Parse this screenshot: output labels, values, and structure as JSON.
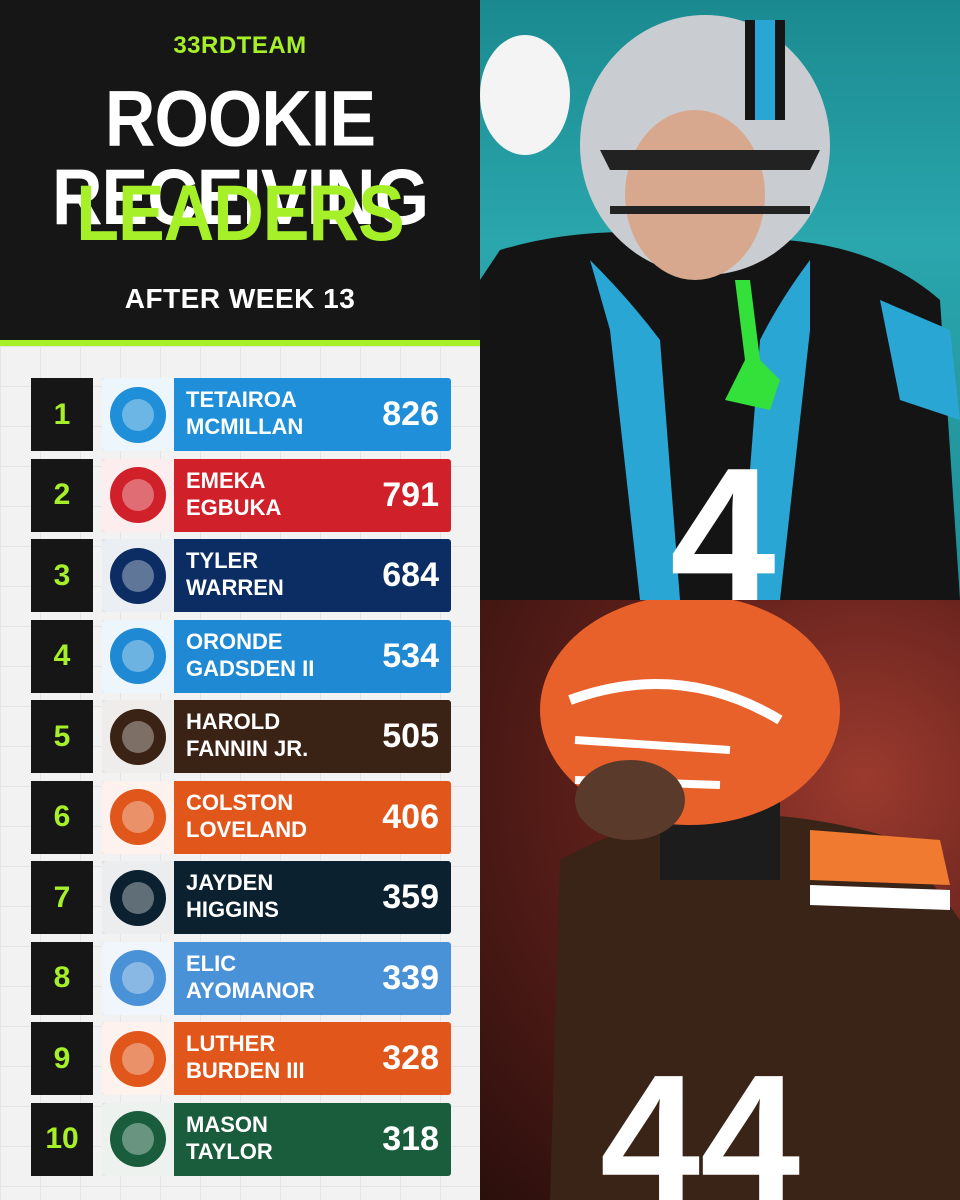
{
  "header": {
    "brand": "33RDTEAM",
    "title_line1": "ROOKIE RECEIVING",
    "title_line2": "LEADERS",
    "subtitle": "AFTER WEEK 13"
  },
  "colors": {
    "accent_green": "#a6f02a",
    "dark": "#161616"
  },
  "leaders": [
    {
      "rank": "1",
      "first": "TETAIROA",
      "last": "MCMILLAN",
      "yards": "826",
      "team_icon": "panthers-logo-icon",
      "color": "#1e8fd8"
    },
    {
      "rank": "2",
      "first": "EMEKA",
      "last": "EGBUKA",
      "yards": "791",
      "team_icon": "buccaneers-logo-icon",
      "color": "#d0202a"
    },
    {
      "rank": "3",
      "first": "TYLER",
      "last": "WARREN",
      "yards": "684",
      "team_icon": "colts-logo-icon",
      "color": "#0b2d63"
    },
    {
      "rank": "4",
      "first": "ORONDE",
      "last": "GADSDEN II",
      "yards": "534",
      "team_icon": "chargers-logo-icon",
      "color": "#1f8ad3"
    },
    {
      "rank": "5",
      "first": "HAROLD",
      "last": "FANNIN JR.",
      "yards": "505",
      "team_icon": "browns-logo-icon",
      "color": "#3a2215"
    },
    {
      "rank": "6",
      "first": "COLSTON",
      "last": "LOVELAND",
      "yards": "406",
      "team_icon": "bears-logo-icon",
      "color": "#e1561b"
    },
    {
      "rank": "7",
      "first": "JAYDEN",
      "last": "HIGGINS",
      "yards": "359",
      "team_icon": "texans-logo-icon",
      "color": "#0c2130"
    },
    {
      "rank": "8",
      "first": "ELIC",
      "last": "AYOMANOR",
      "yards": "339",
      "team_icon": "titans-logo-icon",
      "color": "#4a92d8"
    },
    {
      "rank": "9",
      "first": "LUTHER",
      "last": "BURDEN III",
      "yards": "328",
      "team_icon": "bears-logo-icon",
      "color": "#e1561b"
    },
    {
      "rank": "10",
      "first": "MASON",
      "last": "TAYLOR",
      "yards": "318",
      "team_icon": "jets-logo-icon",
      "color": "#1a5d3c"
    }
  ],
  "photos": {
    "top": {
      "jersey_number": "4",
      "team_icon": "panthers-player-photo"
    },
    "bottom": {
      "jersey_number": "44",
      "team_icon": "browns-player-photo"
    }
  }
}
